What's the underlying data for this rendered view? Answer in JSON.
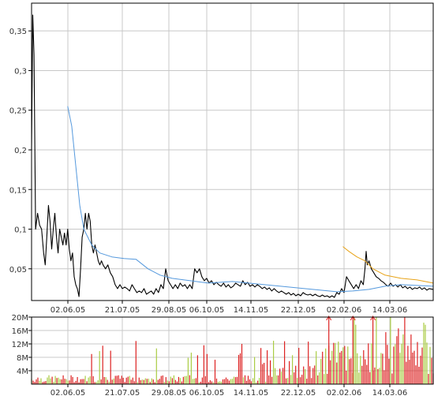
{
  "chart_data": [
    {
      "type": "line",
      "title": "",
      "xlabel": "",
      "ylabel": "",
      "x_tick_labels": [
        "02.06.05",
        "21.07.05",
        "29.08.05",
        "06.10.05",
        "14.11.05",
        "22.12.05",
        "02.02.06",
        "14.03.06"
      ],
      "y_tick_labels": [
        "0,05",
        "0,1",
        "0,15",
        "0,2",
        "0,25",
        "0,3",
        "0,35"
      ],
      "y_ticks": [
        0.05,
        0.1,
        0.15,
        0.2,
        0.25,
        0.3,
        0.35
      ],
      "ylim": [
        0.01,
        0.385
      ],
      "xlim": [
        0,
        1
      ],
      "grid": true,
      "legend": "none",
      "series": [
        {
          "color": "#000000",
          "points": [
            [
              0.0,
              0.2
            ],
            [
              0.003,
              0.37
            ],
            [
              0.006,
              0.32
            ],
            [
              0.01,
              0.1
            ],
            [
              0.015,
              0.12
            ],
            [
              0.02,
              0.105
            ],
            [
              0.025,
              0.1
            ],
            [
              0.03,
              0.07
            ],
            [
              0.034,
              0.055
            ],
            [
              0.038,
              0.09
            ],
            [
              0.042,
              0.13
            ],
            [
              0.046,
              0.11
            ],
            [
              0.05,
              0.075
            ],
            [
              0.054,
              0.1
            ],
            [
              0.058,
              0.12
            ],
            [
              0.062,
              0.09
            ],
            [
              0.066,
              0.07
            ],
            [
              0.07,
              0.1
            ],
            [
              0.074,
              0.09
            ],
            [
              0.078,
              0.08
            ],
            [
              0.082,
              0.095
            ],
            [
              0.086,
              0.08
            ],
            [
              0.09,
              0.1
            ],
            [
              0.094,
              0.075
            ],
            [
              0.098,
              0.06
            ],
            [
              0.102,
              0.07
            ],
            [
              0.106,
              0.04
            ],
            [
              0.11,
              0.03
            ],
            [
              0.114,
              0.025
            ],
            [
              0.118,
              0.015
            ],
            [
              0.122,
              0.05
            ],
            [
              0.126,
              0.09
            ],
            [
              0.13,
              0.1
            ],
            [
              0.134,
              0.12
            ],
            [
              0.138,
              0.1
            ],
            [
              0.142,
              0.12
            ],
            [
              0.146,
              0.11
            ],
            [
              0.15,
              0.08
            ],
            [
              0.154,
              0.07
            ],
            [
              0.158,
              0.08
            ],
            [
              0.162,
              0.07
            ],
            [
              0.166,
              0.06
            ],
            [
              0.17,
              0.055
            ],
            [
              0.174,
              0.06
            ],
            [
              0.178,
              0.055
            ],
            [
              0.184,
              0.05
            ],
            [
              0.19,
              0.055
            ],
            [
              0.196,
              0.045
            ],
            [
              0.202,
              0.04
            ],
            [
              0.208,
              0.03
            ],
            [
              0.214,
              0.025
            ],
            [
              0.22,
              0.03
            ],
            [
              0.226,
              0.025
            ],
            [
              0.232,
              0.027
            ],
            [
              0.238,
              0.025
            ],
            [
              0.244,
              0.022
            ],
            [
              0.25,
              0.03
            ],
            [
              0.256,
              0.025
            ],
            [
              0.262,
              0.02
            ],
            [
              0.268,
              0.022
            ],
            [
              0.274,
              0.02
            ],
            [
              0.28,
              0.025
            ],
            [
              0.286,
              0.018
            ],
            [
              0.292,
              0.02
            ],
            [
              0.298,
              0.022
            ],
            [
              0.304,
              0.018
            ],
            [
              0.31,
              0.025
            ],
            [
              0.316,
              0.02
            ],
            [
              0.322,
              0.03
            ],
            [
              0.328,
              0.025
            ],
            [
              0.334,
              0.05
            ],
            [
              0.34,
              0.035
            ],
            [
              0.346,
              0.03
            ],
            [
              0.352,
              0.025
            ],
            [
              0.358,
              0.03
            ],
            [
              0.364,
              0.025
            ],
            [
              0.37,
              0.032
            ],
            [
              0.376,
              0.028
            ],
            [
              0.382,
              0.03
            ],
            [
              0.388,
              0.025
            ],
            [
              0.394,
              0.03
            ],
            [
              0.4,
              0.025
            ],
            [
              0.406,
              0.05
            ],
            [
              0.412,
              0.045
            ],
            [
              0.418,
              0.05
            ],
            [
              0.424,
              0.04
            ],
            [
              0.43,
              0.035
            ],
            [
              0.436,
              0.038
            ],
            [
              0.442,
              0.032
            ],
            [
              0.448,
              0.035
            ],
            [
              0.454,
              0.03
            ],
            [
              0.46,
              0.033
            ],
            [
              0.466,
              0.03
            ],
            [
              0.472,
              0.028
            ],
            [
              0.478,
              0.032
            ],
            [
              0.484,
              0.027
            ],
            [
              0.49,
              0.03
            ],
            [
              0.496,
              0.026
            ],
            [
              0.502,
              0.028
            ],
            [
              0.508,
              0.032
            ],
            [
              0.514,
              0.03
            ],
            [
              0.52,
              0.028
            ],
            [
              0.526,
              0.035
            ],
            [
              0.532,
              0.03
            ],
            [
              0.538,
              0.033
            ],
            [
              0.544,
              0.028
            ],
            [
              0.55,
              0.03
            ],
            [
              0.556,
              0.027
            ],
            [
              0.562,
              0.03
            ],
            [
              0.568,
              0.028
            ],
            [
              0.574,
              0.025
            ],
            [
              0.58,
              0.027
            ],
            [
              0.586,
              0.024
            ],
            [
              0.592,
              0.026
            ],
            [
              0.598,
              0.022
            ],
            [
              0.604,
              0.025
            ],
            [
              0.61,
              0.022
            ],
            [
              0.616,
              0.02
            ],
            [
              0.622,
              0.022
            ],
            [
              0.628,
              0.02
            ],
            [
              0.634,
              0.018
            ],
            [
              0.64,
              0.02
            ],
            [
              0.646,
              0.017
            ],
            [
              0.652,
              0.019
            ],
            [
              0.658,
              0.016
            ],
            [
              0.664,
              0.018
            ],
            [
              0.67,
              0.016
            ],
            [
              0.676,
              0.02
            ],
            [
              0.682,
              0.018
            ],
            [
              0.688,
              0.017
            ],
            [
              0.694,
              0.018
            ],
            [
              0.7,
              0.016
            ],
            [
              0.706,
              0.018
            ],
            [
              0.712,
              0.016
            ],
            [
              0.718,
              0.015
            ],
            [
              0.724,
              0.017
            ],
            [
              0.73,
              0.015
            ],
            [
              0.736,
              0.016
            ],
            [
              0.742,
              0.014
            ],
            [
              0.748,
              0.016
            ],
            [
              0.754,
              0.014
            ],
            [
              0.76,
              0.02
            ],
            [
              0.766,
              0.018
            ],
            [
              0.772,
              0.025
            ],
            [
              0.778,
              0.02
            ],
            [
              0.784,
              0.04
            ],
            [
              0.79,
              0.035
            ],
            [
              0.796,
              0.03
            ],
            [
              0.802,
              0.025
            ],
            [
              0.808,
              0.03
            ],
            [
              0.814,
              0.025
            ],
            [
              0.82,
              0.035
            ],
            [
              0.826,
              0.03
            ],
            [
              0.83,
              0.05
            ],
            [
              0.833,
              0.072
            ],
            [
              0.836,
              0.055
            ],
            [
              0.84,
              0.06
            ],
            [
              0.846,
              0.05
            ],
            [
              0.852,
              0.045
            ],
            [
              0.858,
              0.04
            ],
            [
              0.864,
              0.038
            ],
            [
              0.87,
              0.035
            ],
            [
              0.876,
              0.033
            ],
            [
              0.882,
              0.03
            ],
            [
              0.888,
              0.028
            ],
            [
              0.894,
              0.032
            ],
            [
              0.9,
              0.028
            ],
            [
              0.906,
              0.03
            ],
            [
              0.912,
              0.027
            ],
            [
              0.918,
              0.03
            ],
            [
              0.924,
              0.026
            ],
            [
              0.93,
              0.028
            ],
            [
              0.936,
              0.025
            ],
            [
              0.942,
              0.027
            ],
            [
              0.948,
              0.024
            ],
            [
              0.954,
              0.026
            ],
            [
              0.96,
              0.025
            ],
            [
              0.966,
              0.027
            ],
            [
              0.972,
              0.024
            ],
            [
              0.978,
              0.026
            ],
            [
              0.984,
              0.023
            ],
            [
              0.99,
              0.025
            ],
            [
              1.0,
              0.024
            ]
          ]
        },
        {
          "color": "#5599dd",
          "points": [
            [
              0.09,
              0.255
            ],
            [
              0.1,
              0.23
            ],
            [
              0.11,
              0.18
            ],
            [
              0.12,
              0.13
            ],
            [
              0.13,
              0.1
            ],
            [
              0.15,
              0.08
            ],
            [
              0.17,
              0.07
            ],
            [
              0.2,
              0.065
            ],
            [
              0.23,
              0.063
            ],
            [
              0.26,
              0.062
            ],
            [
              0.29,
              0.05
            ],
            [
              0.32,
              0.042
            ],
            [
              0.35,
              0.038
            ],
            [
              0.38,
              0.036
            ],
            [
              0.41,
              0.034
            ],
            [
              0.44,
              0.032
            ],
            [
              0.47,
              0.033
            ],
            [
              0.5,
              0.034
            ],
            [
              0.54,
              0.032
            ],
            [
              0.58,
              0.03
            ],
            [
              0.62,
              0.028
            ],
            [
              0.66,
              0.026
            ],
            [
              0.7,
              0.024
            ],
            [
              0.74,
              0.022
            ],
            [
              0.76,
              0.021
            ],
            [
              0.8,
              0.022
            ],
            [
              0.84,
              0.024
            ],
            [
              0.88,
              0.028
            ],
            [
              0.92,
              0.03
            ],
            [
              0.96,
              0.029
            ],
            [
              1.0,
              0.028
            ]
          ]
        },
        {
          "color": "#e8a317",
          "points": [
            [
              0.775,
              0.078
            ],
            [
              0.79,
              0.072
            ],
            [
              0.81,
              0.065
            ],
            [
              0.83,
              0.06
            ],
            [
              0.85,
              0.05
            ],
            [
              0.88,
              0.042
            ],
            [
              0.92,
              0.038
            ],
            [
              0.96,
              0.036
            ],
            [
              1.0,
              0.032
            ]
          ]
        }
      ]
    },
    {
      "type": "bar",
      "title": "",
      "xlabel": "",
      "ylabel": "",
      "x_tick_labels": [
        "02.06.05",
        "21.07.05",
        "29.08.05",
        "06.10.05",
        "14.11.05",
        "22.12.05",
        "02.02.06",
        "14.03.06"
      ],
      "y_tick_labels": [
        "4M",
        "8M",
        "12M",
        "16M",
        "20M"
      ],
      "y_ticks": [
        4,
        8,
        12,
        16,
        20
      ],
      "ylim": [
        0,
        20
      ],
      "grid": true,
      "legend": "none",
      "up_color": "#aacc44",
      "down_color": "#dd2222",
      "overflow_color": "#dd2222"
    }
  ]
}
